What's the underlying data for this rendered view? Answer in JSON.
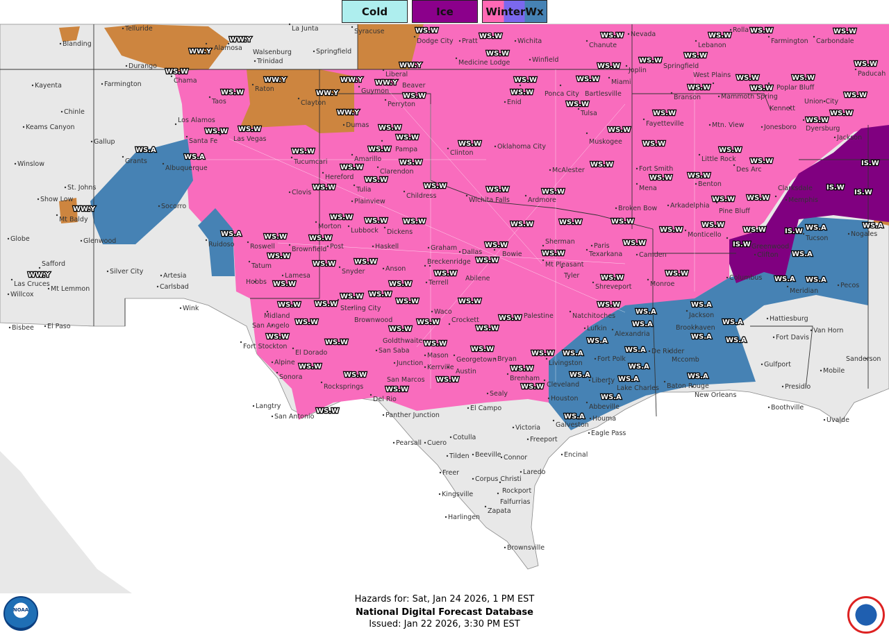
{
  "legend": [
    {
      "label": "Cold",
      "color": "#aeeeee"
    },
    {
      "label": "Ice",
      "color": "#8b008b"
    },
    {
      "label": "WinterWx",
      "colors": [
        "#ff69b4",
        "#7b68ee",
        "#4682b4"
      ]
    }
  ],
  "hazard_colors": {
    "winter_storm_warning": "#f96cbd",
    "winter_storm_watch": "#4682b4",
    "winter_weather_advisory": "#cd853f",
    "ice_storm_warning": "#800080",
    "land": "#e8e8e8",
    "water_and_foreign": "#ffffff"
  },
  "hazard_codes": [
    "WS.W",
    "WS.A",
    "WW.Y",
    "IS.W"
  ],
  "cities": [
    "Telluride",
    "Blanding",
    "Alamosa",
    "Walsenburg",
    "La Junta",
    "Syracuse",
    "Dodge City",
    "Pratt",
    "Wichita",
    "Chanute",
    "Nevada",
    "Rolla",
    "Farmington",
    "Carbondale",
    "Durango",
    "Trinidad",
    "Springfield",
    "Liberal",
    "Medicine Lodge",
    "Winfield",
    "Joplin",
    "Springfield",
    "Lebanon",
    "Paducah",
    "Kayenta",
    "Farmington",
    "Chama",
    "Raton",
    "Guymon",
    "Beaver",
    "Ponca City",
    "Bartlesville",
    "Miami",
    "West Plains",
    "Poplar Bluff",
    "Chinle",
    "Taos",
    "Clayton",
    "Perryton",
    "Enid",
    "Tulsa",
    "Branson",
    "Mammoth Spring",
    "Union City",
    "Keams Canyon",
    "Los Alamos",
    "Santa Fe",
    "Las Vegas",
    "Dumas",
    "Pampa",
    "Clinton",
    "Oklahoma City",
    "Muskogee",
    "Fayetteville",
    "Mtn. View",
    "Jonesboro",
    "Kennett",
    "Dyersburg",
    "Gallup",
    "Grants",
    "Albuquerque",
    "Tucumcari",
    "Amarillo",
    "Hereford",
    "Clarendon",
    "McAlester",
    "Fort Smith",
    "Little Rock",
    "Des Arc",
    "Jackson",
    "Winslow",
    "St. Johns",
    "Show Low",
    "Mt Baldy",
    "Socorro",
    "Clovis",
    "Tulia",
    "Plainview",
    "Childress",
    "Wichita Falls",
    "Ardmore",
    "Mena",
    "Benton",
    "Pine Bluff",
    "Memphis",
    "Globe",
    "Glenwood",
    "Ruidoso",
    "Roswell",
    "Morton",
    "Lubbock",
    "Dickens",
    "Bowie",
    "Sherman",
    "Paris",
    "Broken Bow",
    "Arkadelphia",
    "Clarksdale",
    "Clifton",
    "Safford",
    "Silver City",
    "Artesia",
    "Tatum",
    "Brownfield",
    "Post",
    "Haskell",
    "Graham",
    "Dallas",
    "Mt Pleasant",
    "Texarkana",
    "Camden",
    "Monticello",
    "Greenwood",
    "Tucson",
    "Willcox",
    "Mt Lemmon",
    "Las Cruces",
    "Carlsbad",
    "Hobbs",
    "Lamesa",
    "Snyder",
    "Anson",
    "Breckenridge",
    "Abilene",
    "Terrell",
    "Tyler",
    "Shreveport",
    "Monroe",
    "Columbus",
    "Nogales",
    "Bisbee",
    "El Paso",
    "Wink",
    "Midland",
    "Sterling City",
    "Brownwood",
    "Waco",
    "Palestine",
    "Natchitoches",
    "Jackson",
    "Meridian",
    "Pecos",
    "San Angelo",
    "Goldthwaite",
    "Crockett",
    "Lufkin",
    "Alexandria",
    "Brookhaven",
    "Hattiesburg",
    "Van Horn",
    "Fort Stockton",
    "El Dorado",
    "San Saba",
    "Mason",
    "Georgetown",
    "Bryan",
    "Livingston",
    "Fort Polk",
    "De Ridder",
    "Mccomb",
    "Fort Davis",
    "Alpine",
    "Sonora",
    "Junction",
    "Kerrville",
    "Austin",
    "Brenham",
    "Cleveland",
    "Liberty",
    "Lake Charles",
    "Baton Rouge",
    "Gulfport",
    "Mobile",
    "Sanderson",
    "Rocksprings",
    "San Marcos",
    "Sealy",
    "Houston",
    "Abbeville",
    "New Orleans",
    "Presidio",
    "Langtry",
    "Del Rio",
    "Panther Junction",
    "San Antonio",
    "El Campo",
    "Galveston",
    "Houma",
    "Boothville",
    "Uvalde",
    "Cuero",
    "Victoria",
    "Freeport",
    "Eagle Pass",
    "Pearsall",
    "Cotulla",
    "Tilden",
    "Beeville",
    "Connor",
    "Encinal",
    "Freer",
    "Corpus Christi",
    "Rockport",
    "Laredo",
    "Kingsville",
    "Falfurrias",
    "Zapata",
    "Harlingen",
    "Brownsville"
  ],
  "footer": {
    "hazards_for": "Hazards for: Sat, Jan 24 2026, 1 PM EST",
    "title": "National Digital Forecast Database",
    "issued": "Issued: Jan 22 2026, 3:30 PM EST",
    "noaa_logo": "NOAA",
    "nws_logo": "NATIONAL WEATHER SERVICE"
  }
}
